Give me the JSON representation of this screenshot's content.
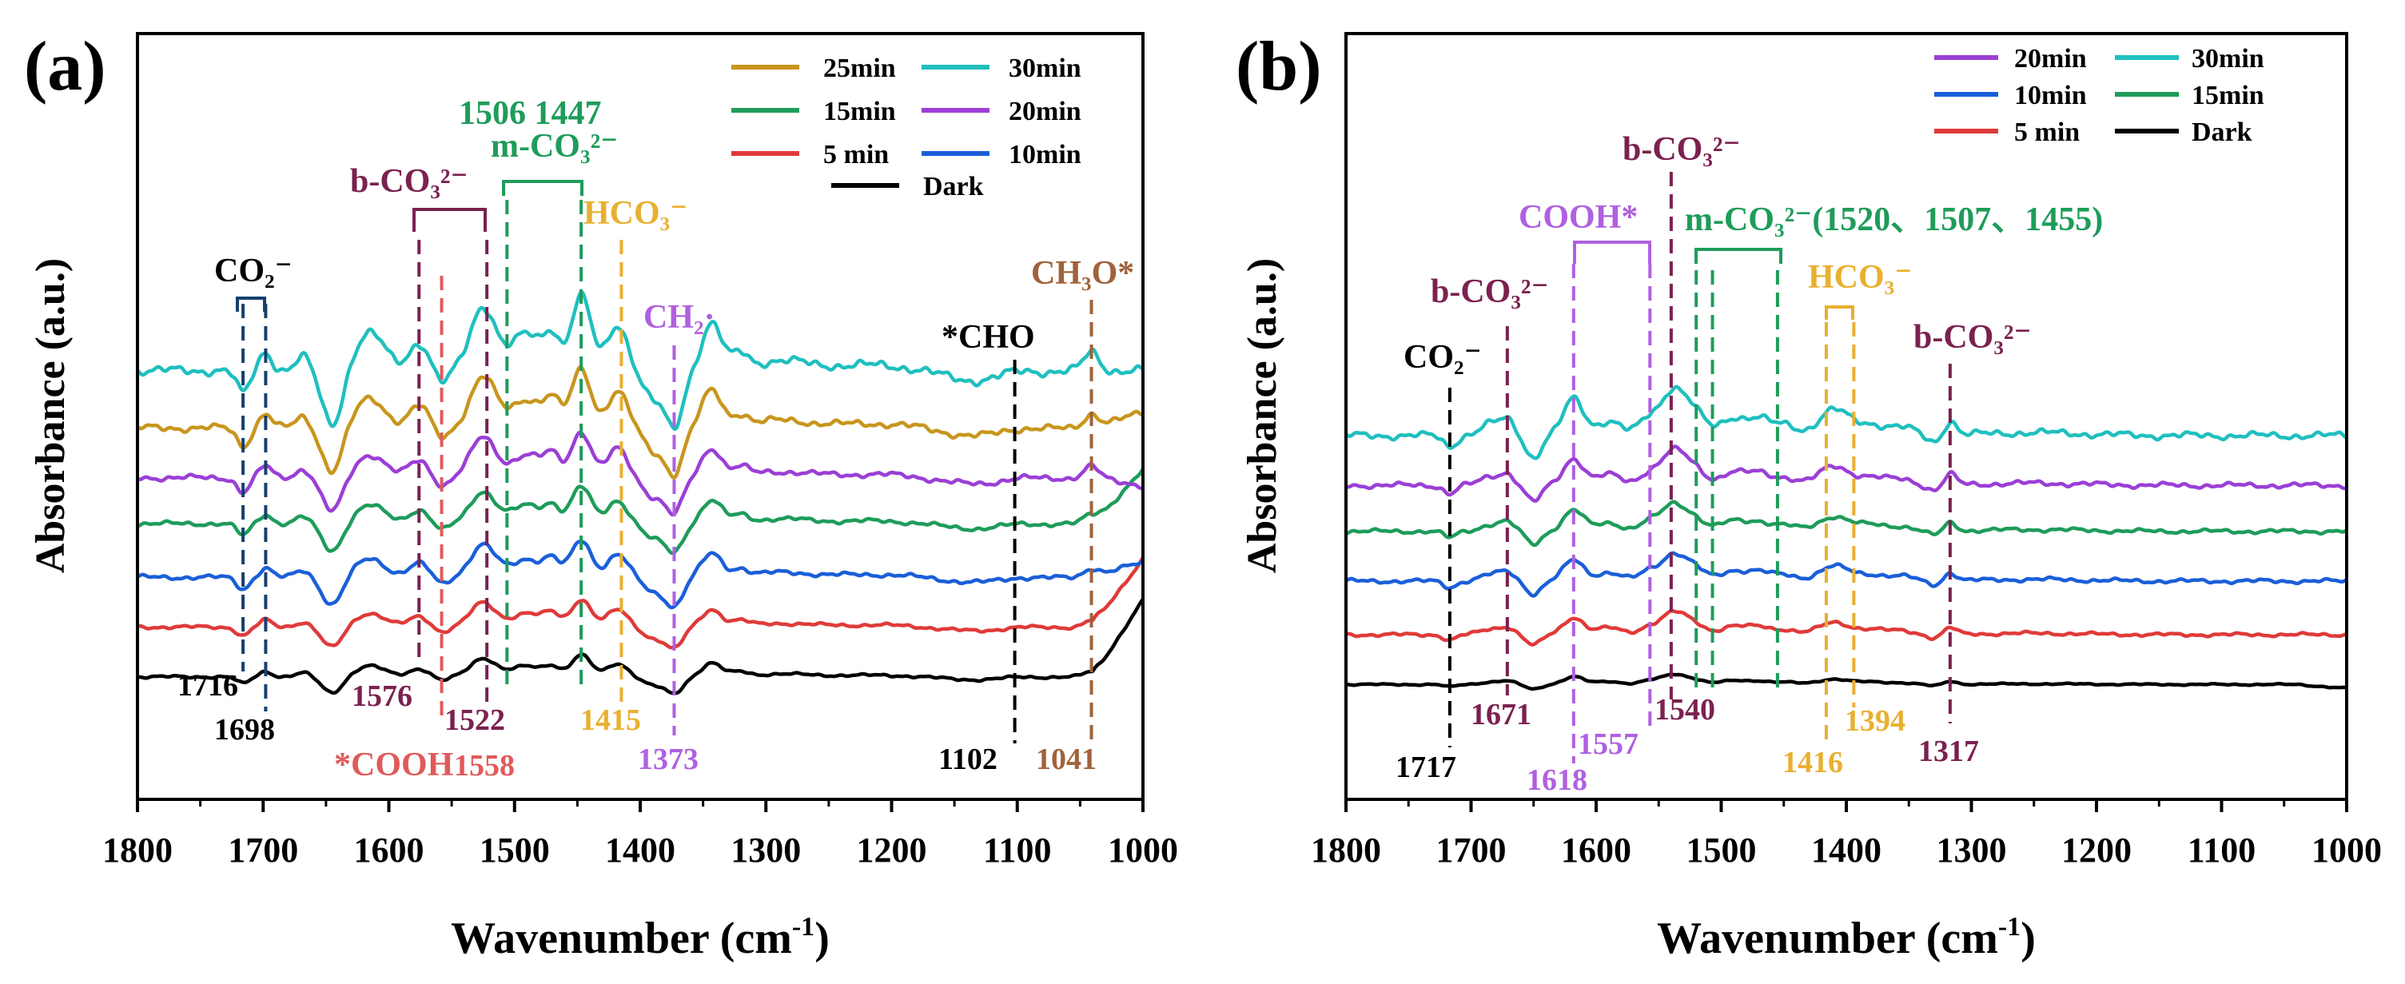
{
  "chart_data": [
    {
      "type": "line",
      "panel_label": "(a)",
      "xlabel": "Wavenumber (cm",
      "xlabel_sup": "-1",
      "xlabel_end": ")",
      "ylabel": "Absorbance (a.u.)",
      "xlim": [
        1800,
        1000
      ],
      "ylim": [
        0,
        100
      ],
      "x_ticks": [
        1800,
        1700,
        1600,
        1500,
        1400,
        1300,
        1200,
        1100,
        1000
      ],
      "legend": [
        {
          "label": "25min",
          "color": "#C8961E"
        },
        {
          "label": "30min",
          "color": "#20BFBF"
        },
        {
          "label": "15min",
          "color": "#1E9C5A"
        },
        {
          "label": "20min",
          "color": "#9B3FD6"
        },
        {
          "label": "5 min",
          "color": "#E03A3A"
        },
        {
          "label": "10min",
          "color": "#1A5FD9"
        },
        {
          "label": "Dark",
          "color": "#000000"
        }
      ],
      "series": [
        {
          "name": "Dark",
          "color": "#000000",
          "baseline": 16,
          "scale": 0.35,
          "end_rise": 10
        },
        {
          "name": "5 min",
          "color": "#E03A3A",
          "baseline": 22.5,
          "scale": 0.45,
          "end_rise": 9
        },
        {
          "name": "10min",
          "color": "#1A5FD9",
          "baseline": 29,
          "scale": 0.6,
          "end_rise": 2
        },
        {
          "name": "15min",
          "color": "#1E9C5A",
          "baseline": 36,
          "scale": 0.6,
          "end_rise": 7
        },
        {
          "name": "20min",
          "color": "#9B3FD6",
          "baseline": 42,
          "scale": 0.75,
          "end_rise": -1
        },
        {
          "name": "25min",
          "color": "#C8961E",
          "baseline": 48.5,
          "scale": 0.95,
          "end_rise": 2
        },
        {
          "name": "30min",
          "color": "#20BFBF",
          "baseline": 56,
          "scale": 1.2,
          "end_rise": 0
        }
      ],
      "features": [
        {
          "x": 1716,
          "w": 5,
          "a": -2.5
        },
        {
          "x": 1698,
          "w": 5,
          "a": 2
        },
        {
          "x": 1668,
          "w": 6,
          "a": 1.5
        },
        {
          "x": 1645,
          "w": 8,
          "a": -6
        },
        {
          "x": 1615,
          "w": 12,
          "a": 4
        },
        {
          "x": 1576,
          "w": 8,
          "a": 3
        },
        {
          "x": 1558,
          "w": 6,
          "a": -1.5
        },
        {
          "x": 1525,
          "w": 10,
          "a": 7
        },
        {
          "x": 1490,
          "w": 12,
          "a": 4
        },
        {
          "x": 1470,
          "w": 6,
          "a": 3.5
        },
        {
          "x": 1447,
          "w": 8,
          "a": 8
        },
        {
          "x": 1418,
          "w": 8,
          "a": 5
        },
        {
          "x": 1390,
          "w": 8,
          "a": -3
        },
        {
          "x": 1373,
          "w": 7,
          "a": -6
        },
        {
          "x": 1343,
          "w": 8,
          "a": 5
        },
        {
          "x": 1320,
          "w": 6,
          "a": 1.5
        },
        {
          "x": 1290,
          "w": 25,
          "a": 1
        },
        {
          "x": 1210,
          "w": 35,
          "a": 0.6
        },
        {
          "x": 1130,
          "w": 30,
          "a": -1.2
        },
        {
          "x": 1102,
          "w": 15,
          "a": 0.6
        },
        {
          "x": 1041,
          "w": 6,
          "a": 2
        }
      ],
      "bands": [
        {
          "x": 1716,
          "label": "1716",
          "color": "#000000",
          "dashed": "#17406E"
        },
        {
          "x": 1698,
          "label": "1698",
          "color": "#000000",
          "dashed": "#17406E"
        },
        {
          "x": 1576,
          "label": "1576",
          "color": "#7B2150",
          "dashed": "#7B2150"
        },
        {
          "x": 1558,
          "label": "1558",
          "color": "#E05A5A",
          "dashed": "#E05A5A"
        },
        {
          "x": 1522,
          "label": "1522",
          "color": "#7B2150",
          "dashed": "#7B2150"
        },
        {
          "x": 1506,
          "label": "",
          "color": "#1E9C5A",
          "dashed": "#1E9C5A"
        },
        {
          "x": 1447,
          "label": "",
          "color": "#1E9C5A",
          "dashed": "#1E9C5A"
        },
        {
          "x": 1415,
          "label": "1415",
          "color": "#E8B030",
          "dashed": "#E8B030"
        },
        {
          "x": 1373,
          "label": "1373",
          "color": "#B060E0",
          "dashed": "#B060E0"
        },
        {
          "x": 1102,
          "label": "1102",
          "color": "#000000",
          "dashed": "#000000"
        },
        {
          "x": 1041,
          "label": "1041",
          "color": "#A0623A",
          "dashed": "#A0623A"
        }
      ],
      "annotations": [
        {
          "text": "CO₂⁻",
          "color": "#000000"
        },
        {
          "text": "b-CO₃²⁻",
          "color": "#7B2150"
        },
        {
          "text": "1506 1447",
          "color": "#1E9C5A"
        },
        {
          "text": "m-CO₃²⁻",
          "color": "#1E9C5A"
        },
        {
          "text": "HCO₃⁻",
          "color": "#E8B030"
        },
        {
          "text": "CH₂·",
          "color": "#B060E0"
        },
        {
          "text": "*CHO",
          "color": "#000000"
        },
        {
          "text": "CH₃O*",
          "color": "#A0623A"
        },
        {
          "text": "*COOH",
          "color": "#E05A5A"
        }
      ]
    },
    {
      "type": "line",
      "panel_label": "(b)",
      "xlabel": "Wavenumber (cm",
      "xlabel_sup": "-1",
      "xlabel_end": ")",
      "ylabel": "Absorbance (a.u.)",
      "xlim": [
        1800,
        1000
      ],
      "ylim": [
        0,
        100
      ],
      "x_ticks": [
        1800,
        1700,
        1600,
        1500,
        1400,
        1300,
        1200,
        1100,
        1000
      ],
      "legend": [
        {
          "label": "20min",
          "color": "#9B3FD6"
        },
        {
          "label": "30min",
          "color": "#20BFBF"
        },
        {
          "label": "10min",
          "color": "#1A5FD9"
        },
        {
          "label": "15min",
          "color": "#1E9C5A"
        },
        {
          "label": "5 min",
          "color": "#E03A3A"
        },
        {
          "label": "Dark",
          "color": "#000000"
        }
      ],
      "series": [
        {
          "name": "Dark",
          "color": "#000000",
          "baseline": 15,
          "scale": 0.2,
          "end_rise": -0.5
        },
        {
          "name": "5 min",
          "color": "#E03A3A",
          "baseline": 21.5,
          "scale": 0.45,
          "end_rise": 0
        },
        {
          "name": "10min",
          "color": "#1A5FD9",
          "baseline": 28.5,
          "scale": 0.55,
          "end_rise": 0
        },
        {
          "name": "15min",
          "color": "#1E9C5A",
          "baseline": 35,
          "scale": 0.55,
          "end_rise": 0
        },
        {
          "name": "20min",
          "color": "#9B3FD6",
          "baseline": 41,
          "scale": 0.7,
          "end_rise": 0
        },
        {
          "name": "30min",
          "color": "#20BFBF",
          "baseline": 47.5,
          "scale": 0.95,
          "end_rise": 0
        }
      ],
      "features": [
        {
          "x": 1717,
          "w": 5,
          "a": -1.5
        },
        {
          "x": 1685,
          "w": 8,
          "a": 1.5
        },
        {
          "x": 1671,
          "w": 6,
          "a": 2
        },
        {
          "x": 1650,
          "w": 6,
          "a": -3
        },
        {
          "x": 1618,
          "w": 8,
          "a": 5
        },
        {
          "x": 1590,
          "w": 10,
          "a": 2
        },
        {
          "x": 1557,
          "w": 8,
          "a": 2.5
        },
        {
          "x": 1540,
          "w": 8,
          "a": 5
        },
        {
          "x": 1525,
          "w": 10,
          "a": 4
        },
        {
          "x": 1490,
          "w": 10,
          "a": 2.5
        },
        {
          "x": 1470,
          "w": 8,
          "a": 2
        },
        {
          "x": 1450,
          "w": 10,
          "a": 1.5
        },
        {
          "x": 1410,
          "w": 12,
          "a": 3.5
        },
        {
          "x": 1380,
          "w": 12,
          "a": 1.5
        },
        {
          "x": 1355,
          "w": 10,
          "a": 1
        },
        {
          "x": 1330,
          "w": 6,
          "a": -1
        },
        {
          "x": 1317,
          "w": 5,
          "a": 2
        },
        {
          "x": 1250,
          "w": 40,
          "a": 0.4
        }
      ],
      "bands": [
        {
          "x": 1717,
          "label": "1717",
          "color": "#000000",
          "dashed": "#000000"
        },
        {
          "x": 1671,
          "label": "1671",
          "color": "#7B2150",
          "dashed": "#7B2150"
        },
        {
          "x": 1618,
          "label": "1618",
          "color": "#B060E0",
          "dashed": "#B060E0"
        },
        {
          "x": 1557,
          "label": "1557",
          "color": "#B060E0",
          "dashed": "#B060E0"
        },
        {
          "x": 1540,
          "label": "1540",
          "color": "#7B2150",
          "dashed": "#7B2150"
        },
        {
          "x": 1520,
          "label": "",
          "color": "#1E9C5A",
          "dashed": "#1E9C5A"
        },
        {
          "x": 1507,
          "label": "",
          "color": "#1E9C5A",
          "dashed": "#1E9C5A"
        },
        {
          "x": 1455,
          "label": "",
          "color": "#1E9C5A",
          "dashed": "#1E9C5A"
        },
        {
          "x": 1416,
          "label": "1416",
          "color": "#E8B030",
          "dashed": "#E8B030"
        },
        {
          "x": 1394,
          "label": "1394",
          "color": "#E8B030",
          "dashed": "#E8B030"
        },
        {
          "x": 1317,
          "label": "1317",
          "color": "#7B2150",
          "dashed": "#7B2150"
        }
      ],
      "annotations": [
        {
          "text": "CO₂⁻",
          "color": "#000000"
        },
        {
          "text": "b-CO₃²⁻",
          "color": "#7B2150"
        },
        {
          "text": "COOH*",
          "color": "#B060E0"
        },
        {
          "text": "b-CO₃²⁻",
          "color": "#7B2150"
        },
        {
          "text": "m-CO₃²⁻(1520、1507、1455)",
          "color": "#1E9C5A"
        },
        {
          "text": "HCO₃⁻",
          "color": "#E8B030"
        },
        {
          "text": "b-CO₃²⁻",
          "color": "#7B2150"
        }
      ]
    }
  ]
}
